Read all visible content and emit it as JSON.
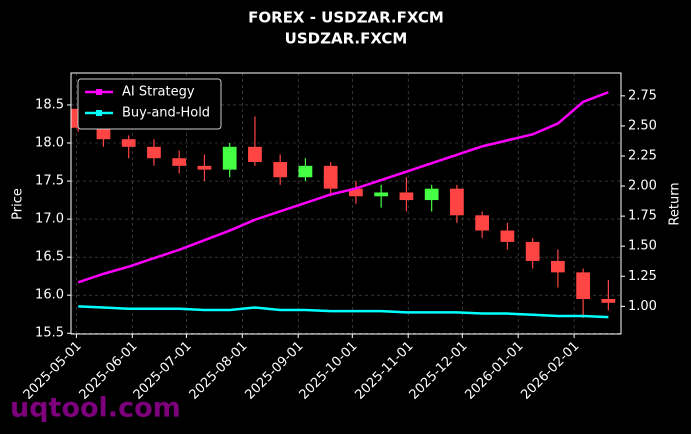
{
  "chart_data": {
    "type": "candlestick",
    "title": "FOREX - USDZAR.FXCM",
    "subtitle": "USDZAR.FXCM",
    "ylabel": "Price",
    "y2label": "Return",
    "watermark": "uqtool.com",
    "x": [
      "2025-05-02",
      "2025-05-16",
      "2025-05-30",
      "2025-06-13",
      "2025-06-27",
      "2025-07-11",
      "2025-07-25",
      "2025-08-08",
      "2025-08-22",
      "2025-09-05",
      "2025-09-19",
      "2025-10-03",
      "2025-10-17",
      "2025-10-31",
      "2025-11-14",
      "2025-11-28",
      "2025-12-12",
      "2025-12-26",
      "2026-01-09",
      "2026-01-23",
      "2026-02-06",
      "2026-02-20"
    ],
    "open": [
      18.45,
      18.2,
      18.05,
      17.95,
      17.8,
      17.7,
      17.65,
      17.95,
      17.75,
      17.55,
      17.7,
      17.4,
      17.3,
      17.35,
      17.25,
      17.4,
      17.05,
      16.85,
      16.7,
      16.45,
      16.3,
      15.95
    ],
    "high": [
      18.6,
      18.3,
      18.1,
      18.05,
      17.9,
      17.85,
      18.0,
      18.35,
      17.85,
      17.8,
      17.75,
      17.5,
      17.45,
      17.55,
      17.45,
      17.45,
      17.1,
      16.95,
      16.75,
      16.6,
      16.35,
      16.2
    ],
    "low": [
      18.15,
      17.95,
      17.8,
      17.7,
      17.6,
      17.5,
      17.55,
      17.7,
      17.45,
      17.5,
      17.3,
      17.2,
      17.15,
      17.1,
      17.1,
      16.95,
      16.75,
      16.6,
      16.35,
      16.1,
      15.7,
      15.8
    ],
    "close": [
      18.2,
      18.05,
      17.95,
      17.8,
      17.7,
      17.65,
      17.95,
      17.75,
      17.55,
      17.7,
      17.4,
      17.3,
      17.35,
      17.25,
      17.4,
      17.05,
      16.85,
      16.7,
      16.45,
      16.3,
      15.95,
      15.9
    ],
    "up_color": "#44ff44",
    "down_color": "#ff4444",
    "series": [
      {
        "name": "AI Strategy",
        "color": "#ff00ff",
        "axis": "y2",
        "values": [
          1.2,
          1.27,
          1.33,
          1.4,
          1.47,
          1.55,
          1.63,
          1.72,
          1.79,
          1.86,
          1.93,
          1.98,
          2.05,
          2.12,
          2.19,
          2.26,
          2.33,
          2.38,
          2.43,
          2.52,
          2.7,
          2.78
        ]
      },
      {
        "name": "Buy-and-Hold",
        "color": "#00ffff",
        "axis": "y2",
        "values": [
          1.0,
          0.99,
          0.98,
          0.98,
          0.98,
          0.97,
          0.97,
          0.99,
          0.97,
          0.97,
          0.96,
          0.96,
          0.96,
          0.95,
          0.95,
          0.95,
          0.94,
          0.94,
          0.93,
          0.92,
          0.92,
          0.91
        ]
      }
    ],
    "xlim": [
      "2025-04-28",
      "2026-02-27"
    ],
    "xticks": [
      "2025-05-01",
      "2025-06-01",
      "2025-07-01",
      "2025-08-01",
      "2025-09-01",
      "2025-10-01",
      "2025-11-01",
      "2025-12-01",
      "2026-01-01",
      "2026-02-01"
    ],
    "ylim": [
      15.49,
      18.92
    ],
    "yticks": [
      15.5,
      {
        "value": 16,
        "label": "16.0"
      },
      16.5,
      {
        "value": 17,
        "label": "17.0"
      },
      17.5,
      {
        "value": 18,
        "label": "18.0"
      },
      18.5
    ],
    "y2lim": [
      0.77,
      2.94
    ],
    "y2ticks": [
      {
        "value": 1,
        "label": "1.00"
      },
      1.25,
      {
        "value": 1.5,
        "label": "1.50"
      },
      1.75,
      {
        "value": 2,
        "label": "2.00"
      },
      2.25,
      {
        "value": 2.5,
        "label": "2.50"
      },
      2.75
    ],
    "grid": true,
    "legend": "upper left"
  }
}
